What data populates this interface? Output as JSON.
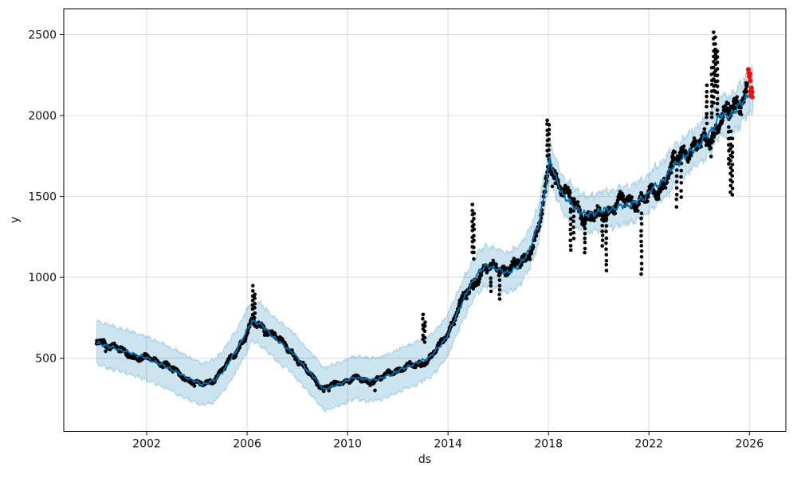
{
  "figure": {
    "kind": "prophet-forecast-plot",
    "background": "#ffffff",
    "grid_color": "#dcdcdc",
    "spine_color": "#000000",
    "tick_label_color": "#111111"
  },
  "chart_data": {
    "type": "line",
    "title": "",
    "xlabel": "ds",
    "ylabel": "y",
    "grid": true,
    "legend": false,
    "xlim": [
      1998.7,
      2027.45
    ],
    "ylim": [
      48,
      2660
    ],
    "x_ticks": [
      2002,
      2006,
      2010,
      2014,
      2018,
      2022,
      2026
    ],
    "x_tick_labels": [
      "2002",
      "2006",
      "2010",
      "2014",
      "2018",
      "2022",
      "2026"
    ],
    "y_ticks": [
      500,
      1000,
      1500,
      2000,
      2500
    ],
    "y_tick_labels": [
      "500",
      "1000",
      "1500",
      "2000",
      "2500"
    ],
    "series": [
      {
        "name": "forecast_yhat",
        "type": "line",
        "color": "#0072B2"
      },
      {
        "name": "uncertainty_interval",
        "type": "band",
        "color": "#0072B2",
        "alpha": 0.2
      },
      {
        "name": "observed_y",
        "type": "scatter",
        "color": "#000000"
      },
      {
        "name": "recent_observed_y",
        "type": "scatter",
        "color": "#f40f0f"
      }
    ],
    "forecast_samples": [
      [
        2000.02,
        595,
        462,
        730
      ],
      [
        2000.5,
        572,
        438,
        706
      ],
      [
        2001.0,
        549,
        415,
        683
      ],
      [
        2001.5,
        526,
        392,
        660
      ],
      [
        2002.0,
        500,
        366,
        634
      ],
      [
        2002.5,
        467,
        333,
        601
      ],
      [
        2003.0,
        431,
        297,
        565
      ],
      [
        2003.5,
        389,
        255,
        523
      ],
      [
        2004.2,
        338,
        208,
        470
      ],
      [
        2004.7,
        363,
        233,
        494
      ],
      [
        2005.1,
        432,
        302,
        562
      ],
      [
        2005.5,
        530,
        400,
        660
      ],
      [
        2005.9,
        642,
        512,
        772
      ],
      [
        2006.2,
        731,
        604,
        858
      ],
      [
        2006.5,
        716,
        589,
        843
      ],
      [
        2006.9,
        654,
        526,
        782
      ],
      [
        2007.3,
        596,
        468,
        724
      ],
      [
        2007.8,
        539,
        409,
        669
      ],
      [
        2008.2,
        461,
        331,
        591
      ],
      [
        2008.7,
        377,
        246,
        508
      ],
      [
        2009.05,
        309,
        176,
        442
      ],
      [
        2009.45,
        327,
        194,
        460
      ],
      [
        2009.85,
        353,
        220,
        486
      ],
      [
        2010.3,
        383,
        250,
        516
      ],
      [
        2010.8,
        367,
        234,
        500
      ],
      [
        2011.3,
        374,
        241,
        507
      ],
      [
        2011.8,
        406,
        273,
        539
      ],
      [
        2012.3,
        443,
        311,
        575
      ],
      [
        2012.8,
        473,
        341,
        605
      ],
      [
        2013.3,
        511,
        380,
        642
      ],
      [
        2013.7,
        581,
        452,
        710
      ],
      [
        2014.0,
        646,
        519,
        773
      ],
      [
        2014.4,
        792,
        667,
        917
      ],
      [
        2014.8,
        922,
        798,
        1046
      ],
      [
        2015.15,
        1022,
        899,
        1145
      ],
      [
        2015.5,
        1071,
        948,
        1194
      ],
      [
        2015.9,
        1057,
        934,
        1180
      ],
      [
        2016.3,
        1027,
        904,
        1150
      ],
      [
        2016.8,
        1064,
        942,
        1186
      ],
      [
        2017.2,
        1161,
        1040,
        1282
      ],
      [
        2017.6,
        1322,
        1203,
        1441
      ],
      [
        2017.85,
        1530,
        1412,
        1648
      ],
      [
        2018.05,
        1725,
        1610,
        1838
      ],
      [
        2018.3,
        1609,
        1493,
        1725
      ],
      [
        2018.6,
        1504,
        1388,
        1620
      ],
      [
        2018.95,
        1446,
        1330,
        1562
      ],
      [
        2019.5,
        1383,
        1268,
        1498
      ],
      [
        2019.95,
        1406,
        1291,
        1521
      ],
      [
        2020.45,
        1421,
        1306,
        1536
      ],
      [
        2020.9,
        1439,
        1324,
        1554
      ],
      [
        2021.35,
        1456,
        1341,
        1571
      ],
      [
        2021.8,
        1491,
        1375,
        1607
      ],
      [
        2022.1,
        1544,
        1428,
        1660
      ],
      [
        2022.5,
        1589,
        1472,
        1706
      ],
      [
        2023.0,
        1689,
        1571,
        1807
      ],
      [
        2023.5,
        1757,
        1638,
        1876
      ],
      [
        2024.0,
        1823,
        1703,
        1943
      ],
      [
        2024.5,
        1911,
        1790,
        2032
      ],
      [
        2024.85,
        2006,
        1884,
        2128
      ],
      [
        2025.1,
        1993,
        1870,
        2116
      ],
      [
        2025.35,
        2021,
        1898,
        2144
      ],
      [
        2025.65,
        2069,
        1945,
        2193
      ],
      [
        2025.95,
        2129,
        2004,
        2254
      ],
      [
        2026.15,
        2163,
        2038,
        2288
      ]
    ],
    "observed_generation": {
      "t_start": 2000.005,
      "t_end": 2025.92,
      "step": 0.012,
      "seed": 7,
      "dot_radius": 2.3
    },
    "observed_anomaly_runs": [
      {
        "t": 2006.22,
        "from": 770,
        "to": 945,
        "n": 7
      },
      {
        "t": 2006.3,
        "from": 755,
        "to": 900,
        "n": 6
      },
      {
        "t": 2011.1,
        "from": 295,
        "to": 310,
        "n": 1
      },
      {
        "t": 2013.0,
        "from": 615,
        "to": 775,
        "n": 6
      },
      {
        "t": 2013.08,
        "from": 600,
        "to": 725,
        "n": 5
      },
      {
        "t": 2014.97,
        "from": 1150,
        "to": 1450,
        "n": 10
      },
      {
        "t": 2015.03,
        "from": 1120,
        "to": 1395,
        "n": 9
      },
      {
        "t": 2015.7,
        "from": 915,
        "to": 1000,
        "n": 4
      },
      {
        "t": 2016.05,
        "from": 865,
        "to": 980,
        "n": 5
      },
      {
        "t": 2017.95,
        "from": 1755,
        "to": 1975,
        "n": 8
      },
      {
        "t": 2018.02,
        "from": 1730,
        "to": 1945,
        "n": 8
      },
      {
        "t": 2018.88,
        "from": 1165,
        "to": 1400,
        "n": 8
      },
      {
        "t": 2019.0,
        "from": 1235,
        "to": 1415,
        "n": 6
      },
      {
        "t": 2019.45,
        "from": 1150,
        "to": 1330,
        "n": 7
      },
      {
        "t": 2020.15,
        "from": 1190,
        "to": 1390,
        "n": 7
      },
      {
        "t": 2020.3,
        "from": 1040,
        "to": 1380,
        "n": 11
      },
      {
        "t": 2021.7,
        "from": 1020,
        "to": 1395,
        "n": 12
      },
      {
        "t": 2023.1,
        "from": 1440,
        "to": 1700,
        "n": 8
      },
      {
        "t": 2023.28,
        "from": 1500,
        "to": 1780,
        "n": 8
      },
      {
        "t": 2024.3,
        "from": 1950,
        "to": 2185,
        "n": 8
      },
      {
        "t": 2024.5,
        "from": 1985,
        "to": 2290,
        "n": 10
      },
      {
        "t": 2024.58,
        "from": 2080,
        "to": 2510,
        "n": 13
      },
      {
        "t": 2024.65,
        "from": 2150,
        "to": 2480,
        "n": 11
      },
      {
        "t": 2024.72,
        "from": 2000,
        "to": 2395,
        "n": 12
      },
      {
        "t": 2025.18,
        "from": 1700,
        "to": 2010,
        "n": 9
      },
      {
        "t": 2025.25,
        "from": 1530,
        "to": 1900,
        "n": 11
      },
      {
        "t": 2025.32,
        "from": 1510,
        "to": 1855,
        "n": 10
      }
    ],
    "recent_points": [
      [
        2025.96,
        2285
      ],
      [
        2025.98,
        2262
      ],
      [
        2026.0,
        2240
      ],
      [
        2026.02,
        2258
      ],
      [
        2026.03,
        2215
      ],
      [
        2026.05,
        2150
      ],
      [
        2026.06,
        2128
      ],
      [
        2026.08,
        2170
      ],
      [
        2026.1,
        2145
      ],
      [
        2026.11,
        2115
      ]
    ]
  }
}
